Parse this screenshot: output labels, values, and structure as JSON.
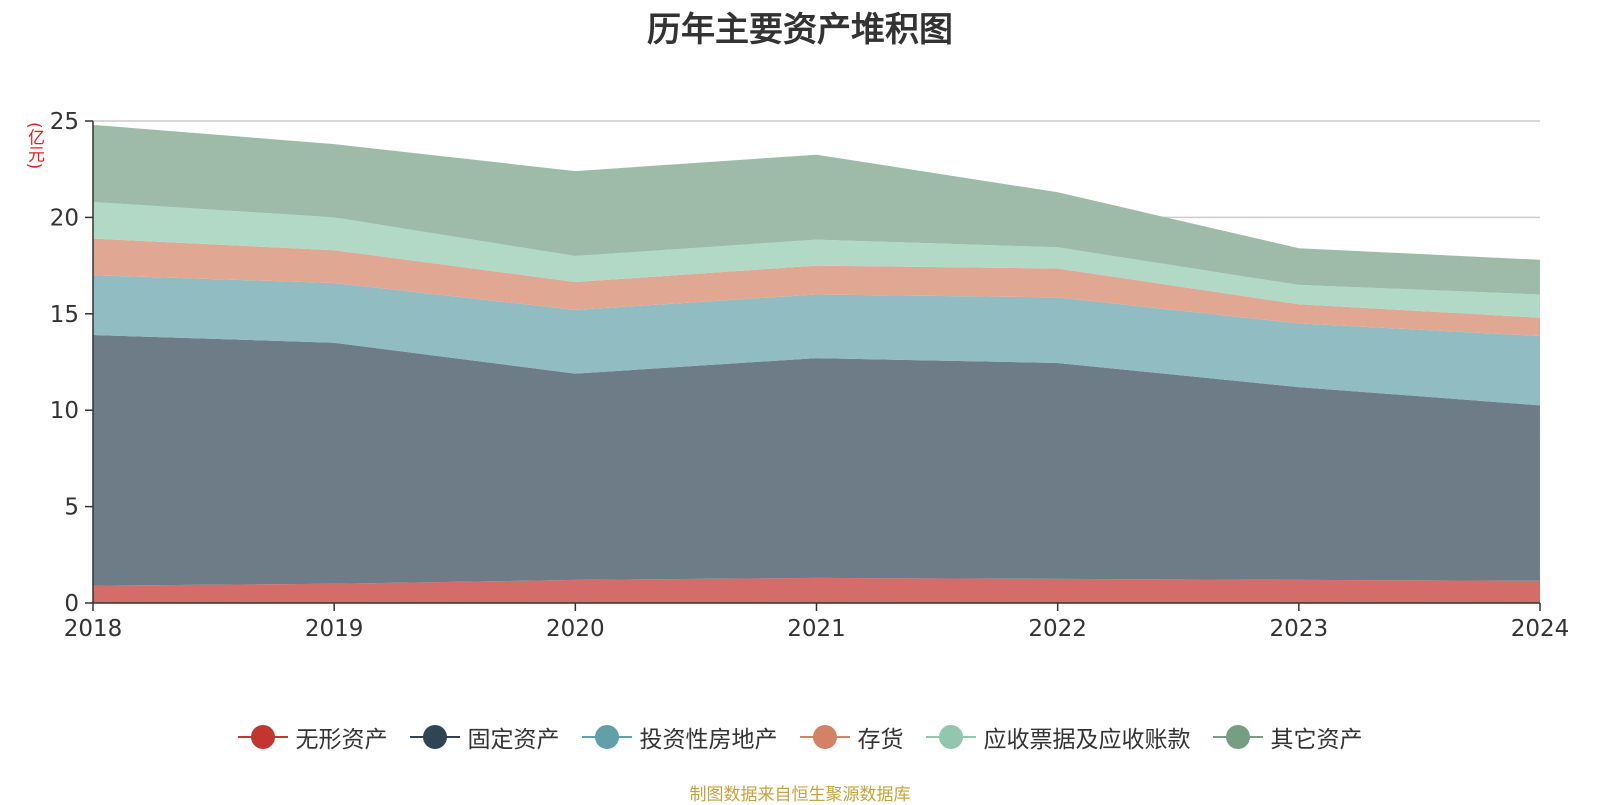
{
  "title": "历年主要资产堆积图",
  "unit_label": "(亿元)",
  "source_note": "制图数据来自恒生聚源数据库",
  "chart_data": {
    "type": "area",
    "stacked": true,
    "x": [
      "2018",
      "2019",
      "2020",
      "2021",
      "2022",
      "2023",
      "2024"
    ],
    "ylim": [
      0,
      25
    ],
    "yticks": [
      0,
      5,
      10,
      15,
      20,
      25
    ],
    "grid": true,
    "legend_position": "bottom",
    "series": [
      {
        "name": "无形资产",
        "color": "#c23531",
        "fill": "#d46c69",
        "values": [
          0.9,
          1.0,
          1.2,
          1.3,
          1.25,
          1.2,
          1.15
        ]
      },
      {
        "name": "固定资产",
        "color": "#2f4554",
        "fill": "#6e7c87",
        "values": [
          13.0,
          12.5,
          10.7,
          11.4,
          11.2,
          10.0,
          9.1
        ]
      },
      {
        "name": "投资性房地产",
        "color": "#61a0a8",
        "fill": "#90bcc2",
        "values": [
          3.1,
          3.1,
          3.3,
          3.3,
          3.4,
          3.3,
          3.6
        ]
      },
      {
        "name": "存货",
        "color": "#d48265",
        "fill": "#e0a893",
        "values": [
          1.9,
          1.7,
          1.45,
          1.5,
          1.5,
          1.0,
          0.95
        ]
      },
      {
        "name": "应收票据及应收账款",
        "color": "#91c7ae",
        "fill": "#b2d8c6",
        "values": [
          1.9,
          1.7,
          1.35,
          1.35,
          1.1,
          1.0,
          1.2
        ]
      },
      {
        "name": "其它资产",
        "color": "#749f83",
        "fill": "#9dbba8",
        "values": [
          4.0,
          3.8,
          4.4,
          4.4,
          2.85,
          1.9,
          1.8
        ]
      }
    ]
  }
}
